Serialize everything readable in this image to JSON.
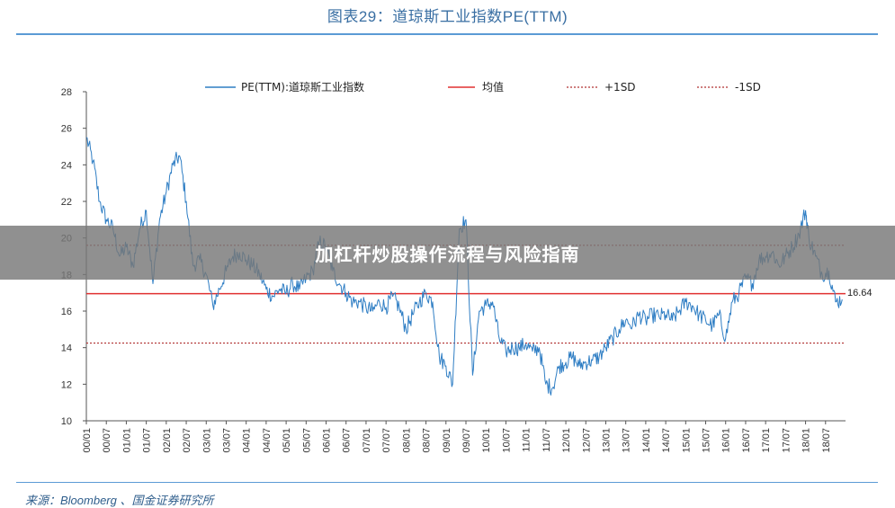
{
  "header": {
    "title": "图表29：道琼斯工业指数PE(TTM)"
  },
  "footer": {
    "source": "来源：Bloomberg 、国金证券研究所"
  },
  "overlay": {
    "text": "加杠杆炒股操作流程与风险指南"
  },
  "colors": {
    "series": "#2f7ec4",
    "mean": "#e03030",
    "sd": "#b03030",
    "title": "#3a6fa3"
  },
  "chart_data": {
    "type": "line",
    "ylim": [
      10,
      28
    ],
    "y_ticks": [
      10,
      12,
      14,
      16,
      18,
      20,
      22,
      24,
      26,
      28
    ],
    "x_ticks": [
      "00/01",
      "00/07",
      "01/01",
      "01/07",
      "02/01",
      "02/07",
      "03/01",
      "03/07",
      "04/01",
      "04/07",
      "05/01",
      "05/07",
      "06/01",
      "06/07",
      "07/01",
      "07/07",
      "08/01",
      "08/07",
      "09/01",
      "09/07",
      "10/01",
      "10/07",
      "11/01",
      "11/07",
      "12/01",
      "12/07",
      "13/01",
      "13/07",
      "14/01",
      "14/07",
      "15/01",
      "15/07",
      "16/01",
      "16/07",
      "17/01",
      "17/07",
      "18/01",
      "18/07"
    ],
    "series": [
      {
        "name": "PE(TTM):道琼斯工业指数",
        "x": [
          "2000-01",
          "2000-03",
          "2000-05",
          "2000-07",
          "2000-09",
          "2000-11",
          "2001-01",
          "2001-03",
          "2001-05",
          "2001-07",
          "2001-09",
          "2001-11",
          "2002-01",
          "2002-03",
          "2002-05",
          "2002-07",
          "2002-09",
          "2002-11",
          "2003-01",
          "2003-03",
          "2003-05",
          "2003-07",
          "2003-09",
          "2003-11",
          "2004-01",
          "2004-03",
          "2004-05",
          "2004-07",
          "2004-09",
          "2004-11",
          "2005-01",
          "2005-03",
          "2005-05",
          "2005-07",
          "2005-09",
          "2005-11",
          "2006-01",
          "2006-03",
          "2006-05",
          "2006-07",
          "2006-09",
          "2006-11",
          "2007-01",
          "2007-03",
          "2007-05",
          "2007-07",
          "2007-09",
          "2007-11",
          "2008-01",
          "2008-03",
          "2008-05",
          "2008-07",
          "2008-09",
          "2008-11",
          "2009-01",
          "2009-03",
          "2009-05",
          "2009-07",
          "2009-09",
          "2009-11",
          "2010-01",
          "2010-03",
          "2010-05",
          "2010-07",
          "2010-09",
          "2010-11",
          "2011-01",
          "2011-03",
          "2011-05",
          "2011-07",
          "2011-09",
          "2011-11",
          "2012-01",
          "2012-03",
          "2012-05",
          "2012-07",
          "2012-09",
          "2012-11",
          "2013-01",
          "2013-03",
          "2013-05",
          "2013-07",
          "2013-09",
          "2013-11",
          "2014-01",
          "2014-03",
          "2014-05",
          "2014-07",
          "2014-09",
          "2014-11",
          "2015-01",
          "2015-03",
          "2015-05",
          "2015-07",
          "2015-09",
          "2015-11",
          "2016-01",
          "2016-03",
          "2016-05",
          "2016-07",
          "2016-09",
          "2016-11",
          "2017-01",
          "2017-03",
          "2017-05",
          "2017-07",
          "2017-09",
          "2017-11",
          "2018-01",
          "2018-02",
          "2018-04",
          "2018-06",
          "2018-08",
          "2018-10",
          "2018-12"
        ],
        "values": [
          25.5,
          24.2,
          22.0,
          21.0,
          20.5,
          19.0,
          19.5,
          18.5,
          20.5,
          21.5,
          17.5,
          21.0,
          22.5,
          24.0,
          24.5,
          22.0,
          18.5,
          18.8,
          18.0,
          16.3,
          17.2,
          18.2,
          19.0,
          19.2,
          18.8,
          18.5,
          18.0,
          17.2,
          16.8,
          17.2,
          17.0,
          17.5,
          17.2,
          17.8,
          18.2,
          19.8,
          19.5,
          18.2,
          17.5,
          17.0,
          16.5,
          16.5,
          16.2,
          16.0,
          16.5,
          16.2,
          16.8,
          16.2,
          15.0,
          15.8,
          16.5,
          17.0,
          16.5,
          13.5,
          13.0,
          12.0,
          20.5,
          21.0,
          12.5,
          16.0,
          16.3,
          16.5,
          14.5,
          13.8,
          14.0,
          14.0,
          14.2,
          13.8,
          14.0,
          12.0,
          11.8,
          13.0,
          13.2,
          13.5,
          13.0,
          13.2,
          13.3,
          13.5,
          14.0,
          14.5,
          15.0,
          15.5,
          15.2,
          15.8,
          15.5,
          15.8,
          15.7,
          15.8,
          15.5,
          16.0,
          16.5,
          16.3,
          15.8,
          15.5,
          15.2,
          15.8,
          14.5,
          16.5,
          17.0,
          17.8,
          17.5,
          18.8,
          19.0,
          19.2,
          18.5,
          19.0,
          19.5,
          20.2,
          21.5,
          20.0,
          19.0,
          18.0,
          18.2,
          16.5,
          16.64
        ]
      },
      {
        "name": "均值",
        "values": [
          16.95
        ]
      },
      {
        "name": "+1SD",
        "values": [
          19.6
        ]
      },
      {
        "name": "-1SD",
        "values": [
          14.25
        ]
      }
    ],
    "annotation": "16.64",
    "legend_position": "top",
    "grid": false
  }
}
